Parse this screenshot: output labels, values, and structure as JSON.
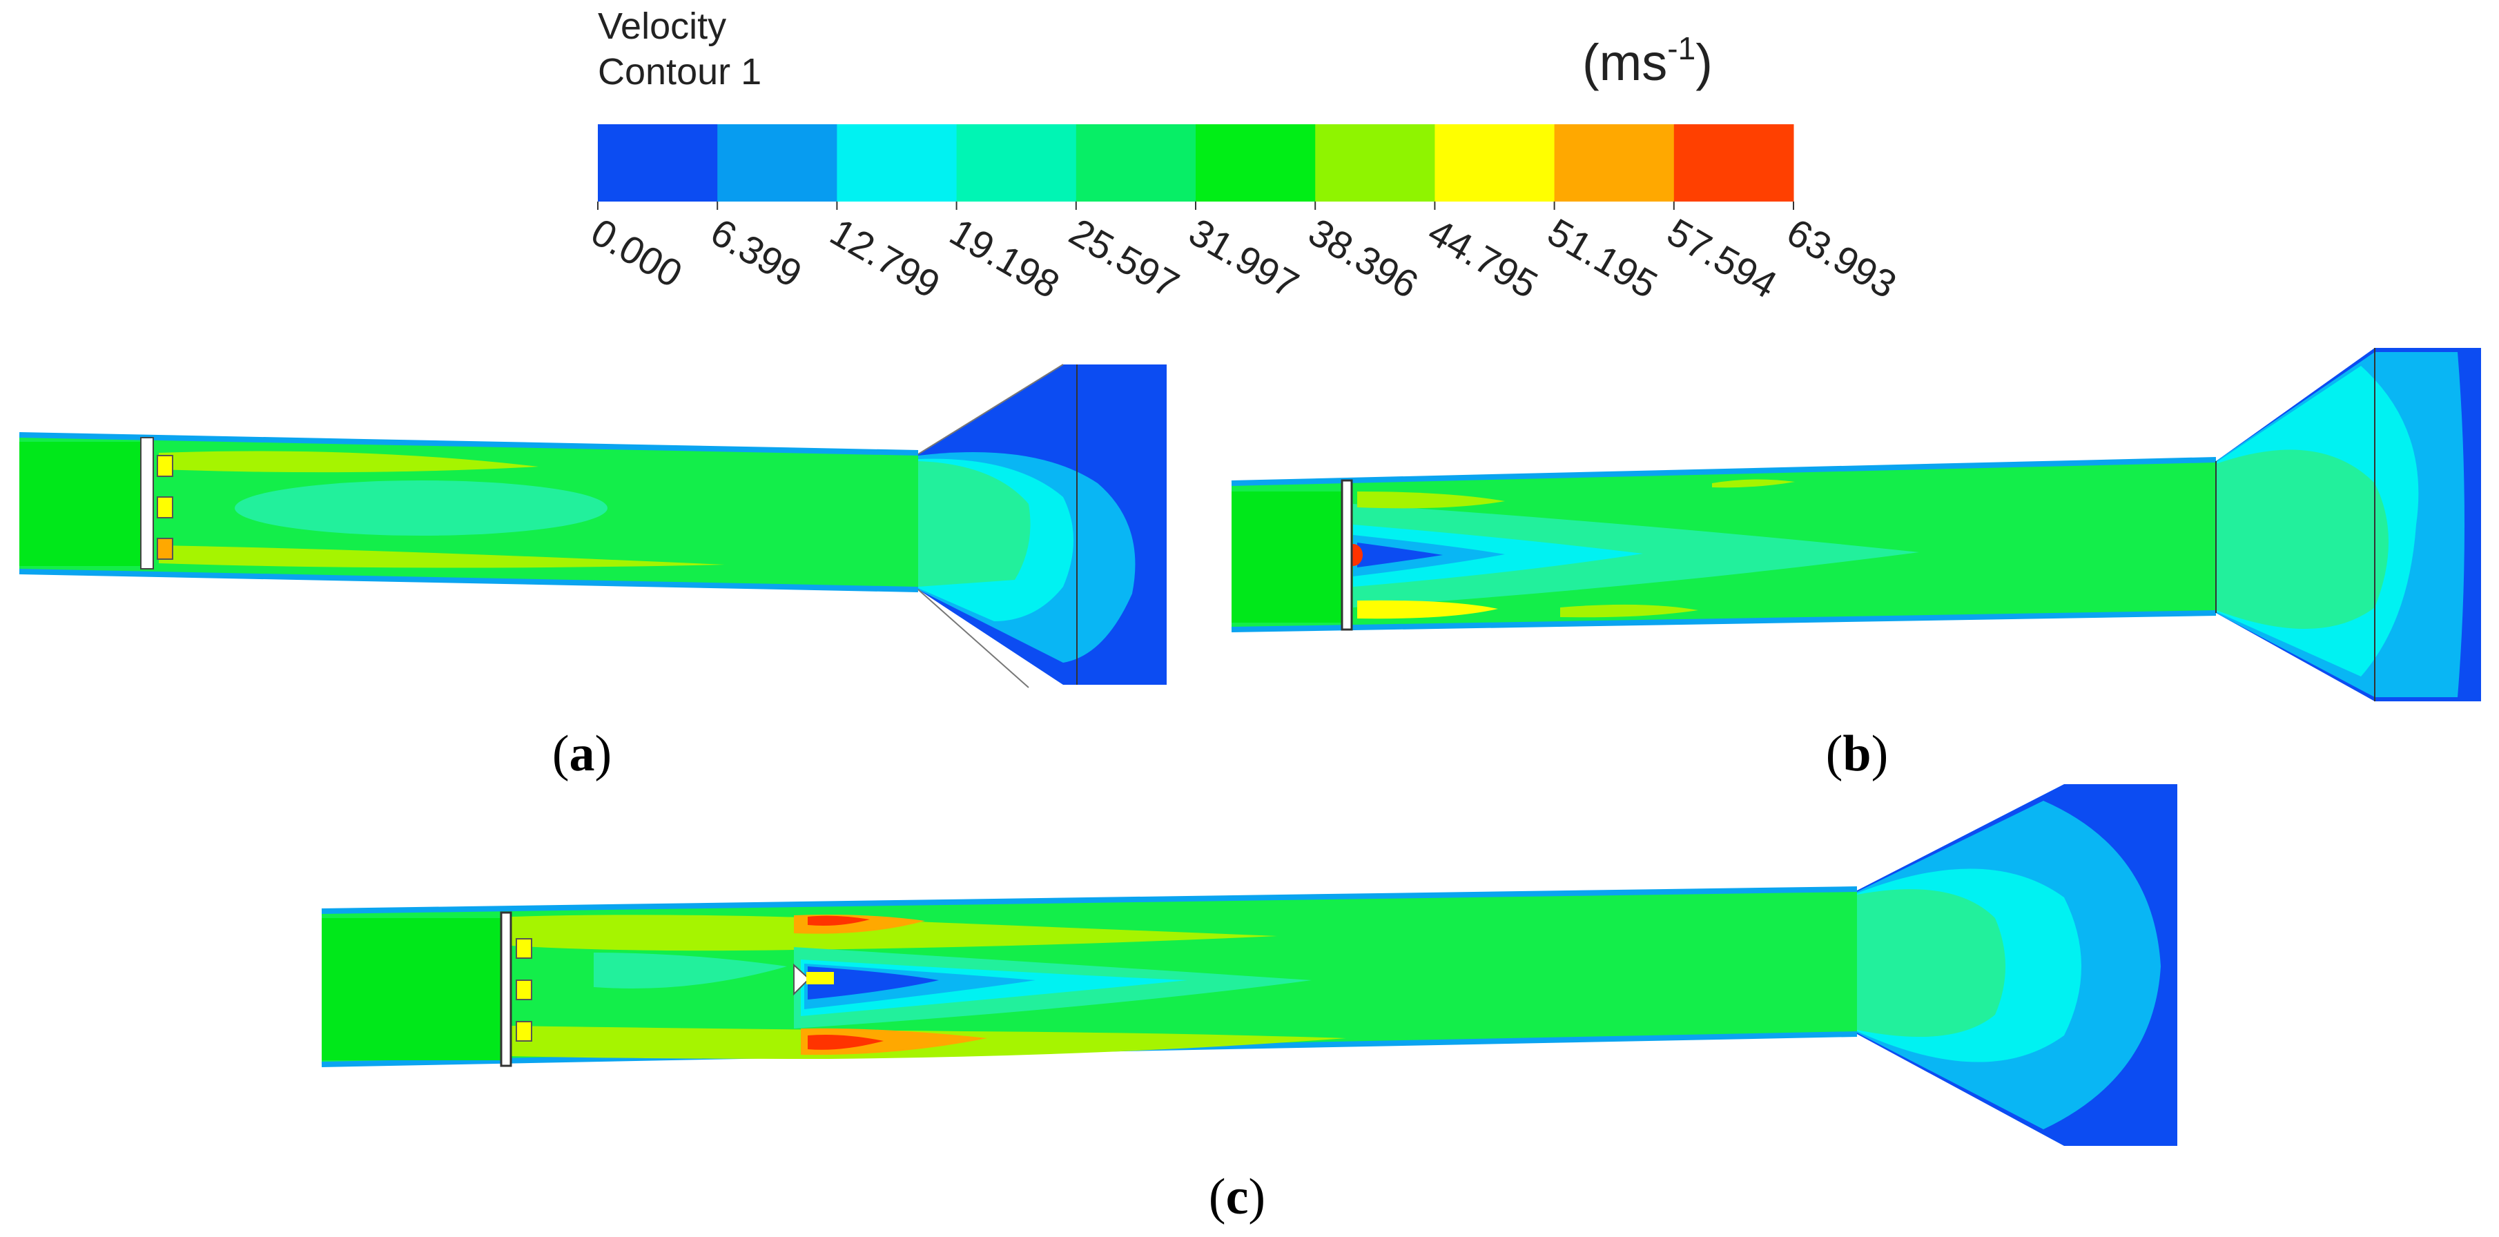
{
  "legend": {
    "title_line1": "Velocity",
    "title_line2": "Contour 1",
    "unit_base": "(ms",
    "unit_sup": "-1",
    "unit_close": ")",
    "ticks": [
      "0.000",
      "6.399",
      "12.799",
      "19.198",
      "25.597",
      "31.997",
      "38.396",
      "44.795",
      "51.195",
      "57.594",
      "63.993"
    ],
    "colors": [
      "#0c4cf2",
      "#079cf0",
      "#00f2f2",
      "#00f5b4",
      "#07ee66",
      "#00ee16",
      "#8ff400",
      "#ffff00",
      "#ffa800",
      "#ff4000"
    ]
  },
  "panels": {
    "a": {
      "label": "a"
    },
    "b": {
      "label": "b"
    },
    "c": {
      "label": "c"
    }
  },
  "flow_colors": {
    "green": "#13ee4a",
    "green_dark": "#00e81a",
    "teal": "#22f09c",
    "cyan": "#00f2f2",
    "light_blue": "#09b6f4",
    "blue": "#0c4cf2",
    "yellow_green": "#a6f400",
    "yellow": "#ffff00",
    "orange": "#ff9900",
    "red": "#ff3300"
  }
}
